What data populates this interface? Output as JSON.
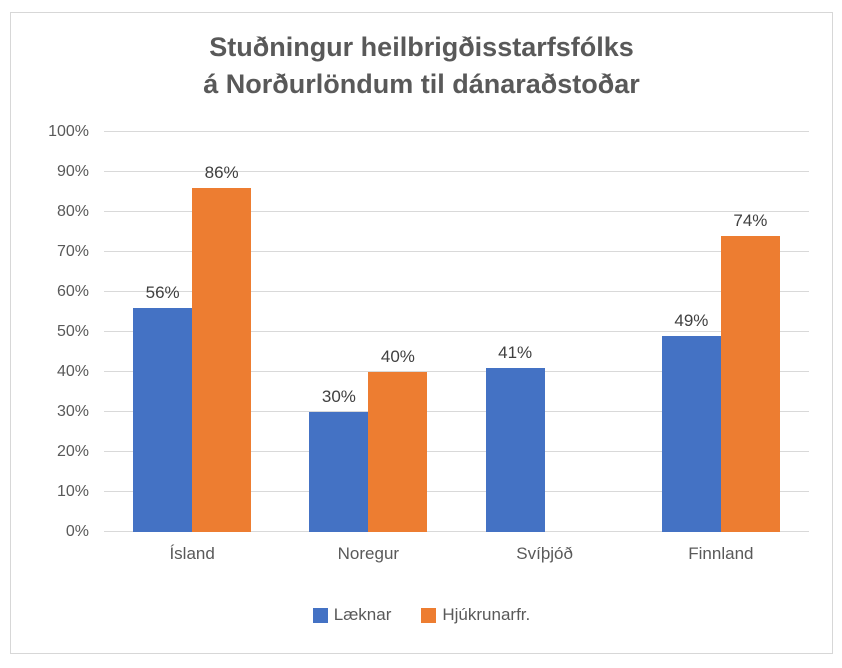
{
  "chart": {
    "frame_border_color": "#d7d7d7",
    "background_color": "#ffffff",
    "gridline_color": "#d9d9d9",
    "title_color": "#595959",
    "axis_label_color": "#595959",
    "data_label_color": "#404040"
  },
  "chart_data": {
    "type": "bar",
    "title": "Stuðningur heilbrigðisstarfsfólks á Norðurlöndum til dánaraðstoðar",
    "title_lines": [
      "Stuðningur heilbrigðisstarfsfólks",
      "á Norðurlöndum til dánaraðstoðar"
    ],
    "categories": [
      "Ísland",
      "Noregur",
      "Svíþjóð",
      "Finnland"
    ],
    "series": [
      {
        "name": "Læknar",
        "color": "#4472C4",
        "values": [
          56,
          30,
          41,
          49
        ]
      },
      {
        "name": "Hjúkrunarfr.",
        "color": "#ED7D31",
        "values": [
          86,
          40,
          null,
          74
        ]
      }
    ],
    "xlabel": "",
    "ylabel": "",
    "ylim": [
      0,
      100
    ],
    "ytick_step": 10,
    "value_suffix": "%",
    "grid": true,
    "legend_position": "bottom",
    "data_labels": true
  }
}
